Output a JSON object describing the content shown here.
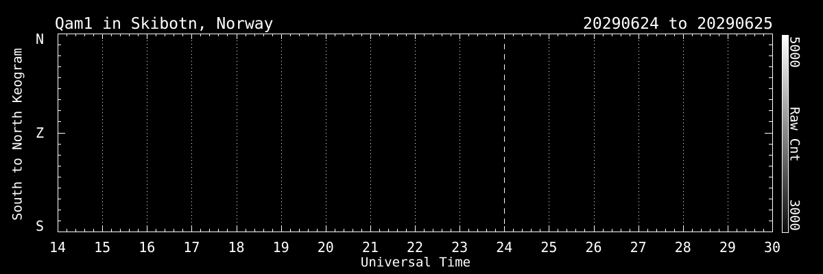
{
  "figure": {
    "background_color": "#000000",
    "foreground_color": "#ffffff"
  },
  "chart_data": {
    "type": "heatmap",
    "variant": "keogram",
    "title": "Qam1 in Skibotn, Norway",
    "subtitle": "20290624 to 20290625",
    "station": "Qam1",
    "location": "Skibotn, Norway",
    "date_start": "20290624",
    "date_end": "20290625",
    "xlabel": "Universal Time",
    "ylabel": "South to North Keogram",
    "x_range": [
      14,
      30
    ],
    "x_ticks": [
      14,
      15,
      16,
      17,
      18,
      19,
      20,
      21,
      22,
      23,
      24,
      25,
      26,
      27,
      28,
      29,
      30
    ],
    "x_minor_subdivisions": 5,
    "y_ticks": [
      {
        "label": "N",
        "frac": 0
      },
      {
        "label": "Z",
        "frac": 0.5
      },
      {
        "label": "S",
        "frac": 1
      }
    ],
    "y_minor_subdivisions_per_half": 9,
    "grid": {
      "vertical_lines": "dotted at every hour",
      "horizontal_lines": "none",
      "day_boundary_hour": 24,
      "day_boundary_style": "dashed"
    },
    "data_note": "plot interior is uniformly black - no visible keogram signal",
    "colorbar": {
      "label": "Raw Cnt",
      "min": 3000,
      "max": 5000,
      "min_label": "3000",
      "max_label": "5000",
      "min_color": "#0d0d0d",
      "max_color": "#ffffff",
      "position": "right"
    }
  }
}
